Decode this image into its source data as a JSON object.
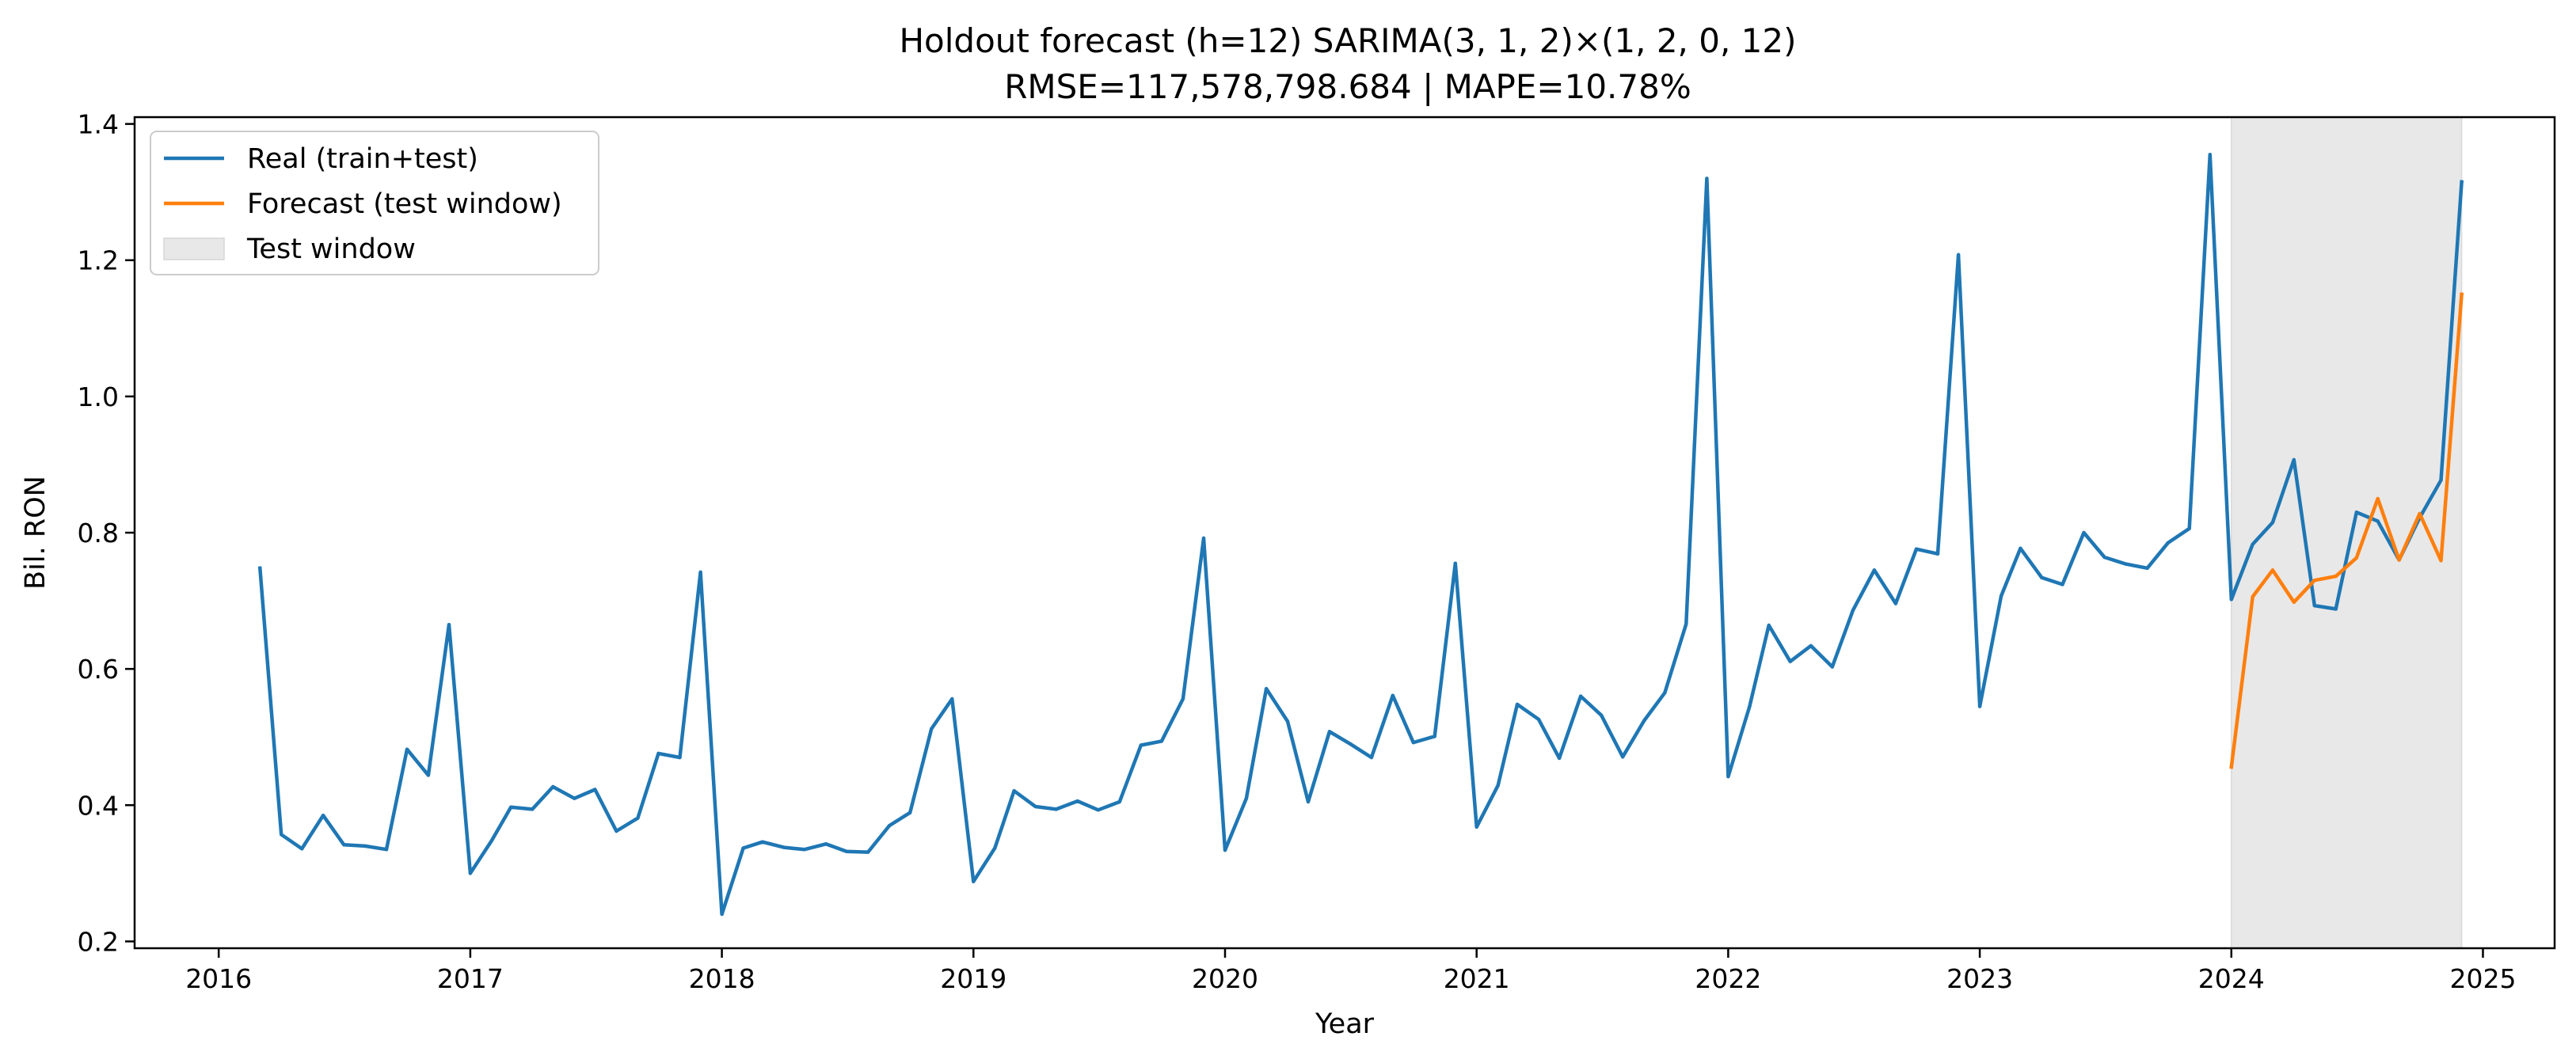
{
  "chart_data": {
    "type": "line",
    "title": "Holdout forecast (h=12) SARIMA(3, 1, 2)×(1, 2, 0, 12)",
    "subtitle": "RMSE=117,578,798.684 | MAPE=10.78%",
    "xlabel": "Year",
    "ylabel": "Bil. RON",
    "xlim": [
      "2015-09-01",
      "2025-04-15"
    ],
    "ylim": [
      0.19,
      1.41
    ],
    "x_ticks": [
      "2016",
      "2017",
      "2018",
      "2019",
      "2020",
      "2021",
      "2022",
      "2023",
      "2024",
      "2025"
    ],
    "y_ticks": [
      "0.2",
      "0.4",
      "0.6",
      "0.8",
      "1.0",
      "1.2",
      "1.4"
    ],
    "grid": false,
    "legend_position": "top-left",
    "test_window": {
      "name": "Test window",
      "start": "2024-01",
      "end": "2024-12",
      "color": "#e8e8e8"
    },
    "series": [
      {
        "name": "Real (train+test)",
        "color": "#1f77b4",
        "x": [
          "2016-03",
          "2016-04",
          "2016-05",
          "2016-06",
          "2016-07",
          "2016-08",
          "2016-09",
          "2016-10",
          "2016-11",
          "2016-12",
          "2017-01",
          "2017-02",
          "2017-03",
          "2017-04",
          "2017-05",
          "2017-06",
          "2017-07",
          "2017-08",
          "2017-09",
          "2017-10",
          "2017-11",
          "2017-12",
          "2018-01",
          "2018-02",
          "2018-03",
          "2018-04",
          "2018-05",
          "2018-06",
          "2018-07",
          "2018-08",
          "2018-09",
          "2018-10",
          "2018-11",
          "2018-12",
          "2019-01",
          "2019-02",
          "2019-03",
          "2019-04",
          "2019-05",
          "2019-06",
          "2019-07",
          "2019-08",
          "2019-09",
          "2019-10",
          "2019-11",
          "2019-12",
          "2020-01",
          "2020-02",
          "2020-03",
          "2020-04",
          "2020-05",
          "2020-06",
          "2020-07",
          "2020-08",
          "2020-09",
          "2020-10",
          "2020-11",
          "2020-12",
          "2021-01",
          "2021-02",
          "2021-03",
          "2021-04",
          "2021-05",
          "2021-06",
          "2021-07",
          "2021-08",
          "2021-09",
          "2021-10",
          "2021-11",
          "2021-12",
          "2022-01",
          "2022-02",
          "2022-03",
          "2022-04",
          "2022-05",
          "2022-06",
          "2022-07",
          "2022-08",
          "2022-09",
          "2022-10",
          "2022-11",
          "2022-12",
          "2023-01",
          "2023-02",
          "2023-03",
          "2023-04",
          "2023-05",
          "2023-06",
          "2023-07",
          "2023-08",
          "2023-09",
          "2023-10",
          "2023-11",
          "2023-12",
          "2024-01",
          "2024-02",
          "2024-03",
          "2024-04",
          "2024-05",
          "2024-06",
          "2024-07",
          "2024-08",
          "2024-09",
          "2024-10",
          "2024-11",
          "2024-12"
        ],
        "values": [
          0.748,
          0.357,
          0.336,
          0.385,
          0.342,
          0.34,
          0.335,
          0.482,
          0.444,
          0.665,
          0.3,
          0.348,
          0.397,
          0.394,
          0.427,
          0.41,
          0.423,
          0.362,
          0.381,
          0.476,
          0.47,
          0.742,
          0.24,
          0.337,
          0.346,
          0.338,
          0.335,
          0.343,
          0.332,
          0.331,
          0.37,
          0.389,
          0.512,
          0.556,
          0.288,
          0.337,
          0.421,
          0.398,
          0.394,
          0.406,
          0.393,
          0.405,
          0.488,
          0.494,
          0.556,
          0.792,
          0.334,
          0.41,
          0.571,
          0.523,
          0.405,
          0.508,
          0.49,
          0.47,
          0.561,
          0.492,
          0.501,
          0.755,
          0.368,
          0.429,
          0.548,
          0.526,
          0.469,
          0.56,
          0.532,
          0.471,
          0.524,
          0.565,
          0.666,
          1.32,
          0.442,
          0.545,
          0.664,
          0.611,
          0.634,
          0.603,
          0.686,
          0.745,
          0.696,
          0.776,
          0.769,
          1.208,
          0.545,
          0.707,
          0.777,
          0.734,
          0.724,
          0.8,
          0.764,
          0.754,
          0.748,
          0.785,
          0.806,
          1.355,
          0.702,
          0.783,
          0.815,
          0.907,
          0.693,
          0.688,
          0.83,
          0.817,
          0.76,
          0.822,
          0.877,
          1.315
        ]
      },
      {
        "name": "Forecast (test window)",
        "color": "#ff7f0e",
        "x": [
          "2024-01",
          "2024-02",
          "2024-03",
          "2024-04",
          "2024-05",
          "2024-06",
          "2024-07",
          "2024-08",
          "2024-09",
          "2024-10",
          "2024-11",
          "2024-12"
        ],
        "values": [
          0.456,
          0.706,
          0.745,
          0.698,
          0.73,
          0.736,
          0.763,
          0.85,
          0.76,
          0.828,
          0.759,
          1.15
        ]
      }
    ]
  }
}
